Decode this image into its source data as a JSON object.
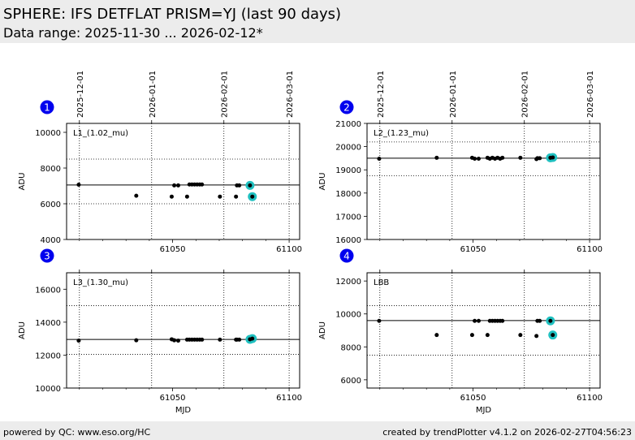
{
  "header": {
    "title": "SPHERE: IFS DETFLAT PRISM=YJ (last 90 days)",
    "subtitle": "Data range: 2025-11-30 ... 2026-02-12*"
  },
  "footer": {
    "left": "powered by QC: www.eso.org/HC",
    "right": "created by trendPlotter v4.1.2 on 2026-02-27T04:56:23"
  },
  "colors": {
    "marker": "#000000",
    "highlight": "#20c0c0",
    "badge": "#0000ee",
    "header_bg": "#ececec"
  },
  "chart_data": [
    {
      "type": "scatter",
      "panel_number": "1",
      "label": "L1_(1.02_mu)",
      "ylabel": "ADU",
      "xlabel": "",
      "xlim": [
        61004.5,
        61104.5
      ],
      "ylim": [
        4000,
        10500
      ],
      "xticks": [
        61050,
        61100
      ],
      "xtick_labels": [
        "61050",
        "61100"
      ],
      "yticks": [
        4000,
        6000,
        8000,
        10000
      ],
      "ytick_labels": [
        "4000",
        "6000",
        "8000",
        "10000"
      ],
      "top_ticks": [
        61010,
        61041,
        61072,
        61100
      ],
      "top_tick_labels": [
        "2025-12-01",
        "2026-01-01",
        "2026-02-01",
        "2026-03-01"
      ],
      "ref_line": 7050,
      "dotted_lines": [
        8500,
        6000
      ],
      "points": [
        {
          "x": 61009.7,
          "y": 7070
        },
        {
          "x": 61034.4,
          "y": 6450
        },
        {
          "x": 61049.6,
          "y": 6400
        },
        {
          "x": 61050.7,
          "y": 7030
        },
        {
          "x": 61052.4,
          "y": 7030
        },
        {
          "x": 61056.2,
          "y": 6400
        },
        {
          "x": 61057.2,
          "y": 7080
        },
        {
          "x": 61058.3,
          "y": 7080
        },
        {
          "x": 61059.4,
          "y": 7080
        },
        {
          "x": 61060.5,
          "y": 7080
        },
        {
          "x": 61061.6,
          "y": 7080
        },
        {
          "x": 61062.6,
          "y": 7080
        },
        {
          "x": 61070.3,
          "y": 6400
        },
        {
          "x": 61077.2,
          "y": 6400
        },
        {
          "x": 61077.6,
          "y": 7030
        },
        {
          "x": 61078.6,
          "y": 7030
        }
      ],
      "highlighted": [
        {
          "x": 61083.2,
          "y": 7030
        },
        {
          "x": 61084.2,
          "y": 6400
        }
      ]
    },
    {
      "type": "scatter",
      "panel_number": "2",
      "label": "L2_(1.23_mu)",
      "ylabel": "ADU",
      "xlabel": "",
      "xlim": [
        61004.5,
        61104.5
      ],
      "ylim": [
        16000,
        21000
      ],
      "xticks": [
        61050,
        61100
      ],
      "xtick_labels": [
        "61050",
        "61100"
      ],
      "yticks": [
        16000,
        17000,
        18000,
        19000,
        20000,
        21000
      ],
      "ytick_labels": [
        "16000",
        "17000",
        "18000",
        "19000",
        "20000",
        "21000"
      ],
      "top_ticks": [
        61010,
        61041,
        61072,
        61100
      ],
      "top_tick_labels": [
        "2025-12-01",
        "2026-01-01",
        "2026-02-01",
        "2026-03-01"
      ],
      "ref_line": 19500,
      "dotted_lines": [
        20200,
        18750
      ],
      "points": [
        {
          "x": 61009.7,
          "y": 19480
        },
        {
          "x": 61034.4,
          "y": 19520
        },
        {
          "x": 61049.6,
          "y": 19520
        },
        {
          "x": 61050.7,
          "y": 19480
        },
        {
          "x": 61052.4,
          "y": 19480
        },
        {
          "x": 61056.2,
          "y": 19520
        },
        {
          "x": 61057.2,
          "y": 19480
        },
        {
          "x": 61058.3,
          "y": 19520
        },
        {
          "x": 61059.4,
          "y": 19480
        },
        {
          "x": 61060.5,
          "y": 19520
        },
        {
          "x": 61061.6,
          "y": 19480
        },
        {
          "x": 61062.6,
          "y": 19520
        },
        {
          "x": 61070.3,
          "y": 19520
        },
        {
          "x": 61077.2,
          "y": 19460
        },
        {
          "x": 61077.6,
          "y": 19500
        },
        {
          "x": 61078.6,
          "y": 19500
        }
      ],
      "highlighted": [
        {
          "x": 61083.2,
          "y": 19520
        },
        {
          "x": 61084.2,
          "y": 19530
        }
      ]
    },
    {
      "type": "scatter",
      "panel_number": "3",
      "label": "L3_(1.30_mu)",
      "ylabel": "ADU",
      "xlabel": "MJD",
      "xlim": [
        61004.5,
        61104.5
      ],
      "ylim": [
        10000,
        17000
      ],
      "xticks": [
        61050,
        61100
      ],
      "xtick_labels": [
        "61050",
        "61100"
      ],
      "yticks": [
        10000,
        12000,
        14000,
        16000
      ],
      "ytick_labels": [
        "10000",
        "12000",
        "14000",
        "16000"
      ],
      "top_ticks": [
        61010,
        61041,
        61072,
        61100
      ],
      "ref_line": 12950,
      "dotted_lines": [
        15000,
        12050
      ],
      "points": [
        {
          "x": 61009.7,
          "y": 12880
        },
        {
          "x": 61034.4,
          "y": 12900
        },
        {
          "x": 61049.6,
          "y": 12960
        },
        {
          "x": 61050.7,
          "y": 12900
        },
        {
          "x": 61052.4,
          "y": 12880
        },
        {
          "x": 61056.2,
          "y": 12940
        },
        {
          "x": 61057.2,
          "y": 12940
        },
        {
          "x": 61058.3,
          "y": 12940
        },
        {
          "x": 61059.4,
          "y": 12940
        },
        {
          "x": 61060.5,
          "y": 12940
        },
        {
          "x": 61061.6,
          "y": 12940
        },
        {
          "x": 61062.6,
          "y": 12940
        },
        {
          "x": 61070.3,
          "y": 12940
        },
        {
          "x": 61077.2,
          "y": 12940
        },
        {
          "x": 61077.6,
          "y": 12940
        },
        {
          "x": 61078.6,
          "y": 12940
        }
      ],
      "highlighted": [
        {
          "x": 61083.2,
          "y": 12960
        },
        {
          "x": 61084.2,
          "y": 13000
        }
      ]
    },
    {
      "type": "scatter",
      "panel_number": "4",
      "label": "LBB",
      "ylabel": "ADU",
      "xlabel": "MJD",
      "xlim": [
        61004.5,
        61104.5
      ],
      "ylim": [
        5500,
        12500
      ],
      "xticks": [
        61050,
        61100
      ],
      "xtick_labels": [
        "61050",
        "61100"
      ],
      "yticks": [
        6000,
        8000,
        10000,
        12000
      ],
      "ytick_labels": [
        "6000",
        "8000",
        "10000",
        "12000"
      ],
      "top_ticks": [
        61010,
        61041,
        61072,
        61100
      ],
      "ref_line": 9600,
      "dotted_lines": [
        10500,
        7500
      ],
      "points": [
        {
          "x": 61009.7,
          "y": 9580
        },
        {
          "x": 61034.4,
          "y": 8720
        },
        {
          "x": 61049.6,
          "y": 8720
        },
        {
          "x": 61050.7,
          "y": 9580
        },
        {
          "x": 61052.4,
          "y": 9580
        },
        {
          "x": 61056.2,
          "y": 8720
        },
        {
          "x": 61057.2,
          "y": 9580
        },
        {
          "x": 61058.3,
          "y": 9580
        },
        {
          "x": 61059.4,
          "y": 9580
        },
        {
          "x": 61060.5,
          "y": 9580
        },
        {
          "x": 61061.6,
          "y": 9580
        },
        {
          "x": 61062.6,
          "y": 9580
        },
        {
          "x": 61070.3,
          "y": 8720
        },
        {
          "x": 61077.2,
          "y": 8660
        },
        {
          "x": 61077.6,
          "y": 9580
        },
        {
          "x": 61078.6,
          "y": 9580
        }
      ],
      "highlighted": [
        {
          "x": 61083.2,
          "y": 9580
        },
        {
          "x": 61084.2,
          "y": 8720
        }
      ]
    }
  ]
}
